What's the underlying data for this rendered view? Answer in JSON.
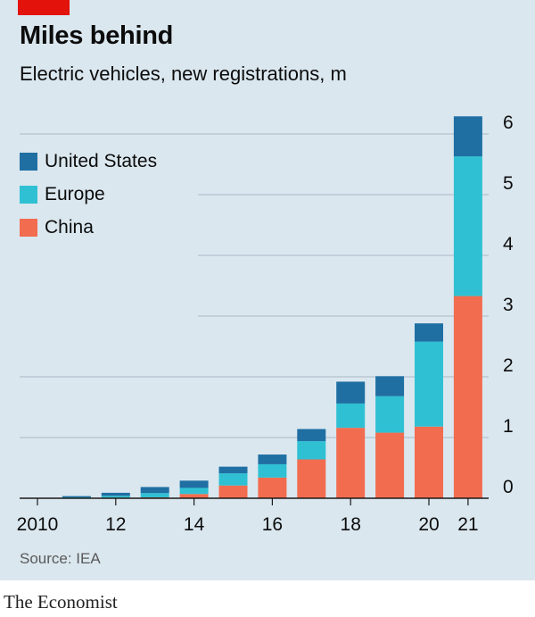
{
  "header": {
    "title": "Miles behind",
    "subtitle": "Electric vehicles, new registrations, m"
  },
  "footer": {
    "source": "Source: IEA",
    "brand": "The Economist"
  },
  "colors": {
    "panel_bg": "#dae7ef",
    "grid": "#b3c3cd",
    "baseline": "#1a1a1a",
    "text": "#0c0c0c",
    "brand_red": "#e3120b"
  },
  "chart_data": {
    "type": "bar",
    "stacked": true,
    "title": "Miles behind",
    "subtitle": "Electric vehicles, new registrations, m",
    "xlabel": "",
    "ylabel": "Electric vehicles, new registrations, m",
    "ylim": [
      0,
      6
    ],
    "yticks": [
      "0",
      "1",
      "2",
      "3",
      "4",
      "5",
      "6"
    ],
    "y_axis_side": "right",
    "grid": true,
    "legend_position": "top-left",
    "categories": [
      "2010",
      "2011",
      "2012",
      "2013",
      "2014",
      "2015",
      "2016",
      "2017",
      "2018",
      "2019",
      "2020",
      "2021"
    ],
    "xtick_labels": [
      "2010",
      "",
      "12",
      "",
      "14",
      "",
      "16",
      "",
      "18",
      "",
      "20",
      "21"
    ],
    "series": [
      {
        "name": "China",
        "color": "#f26c4f",
        "values": [
          0.0,
          0.005,
          0.01,
          0.015,
          0.07,
          0.21,
          0.34,
          0.64,
          1.16,
          1.08,
          1.18,
          3.33
        ]
      },
      {
        "name": "Europe",
        "color": "#2fc1d3",
        "values": [
          0.0,
          0.01,
          0.03,
          0.07,
          0.1,
          0.2,
          0.22,
          0.3,
          0.4,
          0.6,
          1.4,
          2.3
        ]
      },
      {
        "name": "United States",
        "color": "#1f6fa3",
        "values": [
          0.0,
          0.02,
          0.05,
          0.1,
          0.12,
          0.11,
          0.16,
          0.2,
          0.36,
          0.33,
          0.3,
          0.66
        ]
      }
    ],
    "legend": [
      "United States",
      "Europe",
      "China"
    ],
    "source": "Source: IEA"
  }
}
